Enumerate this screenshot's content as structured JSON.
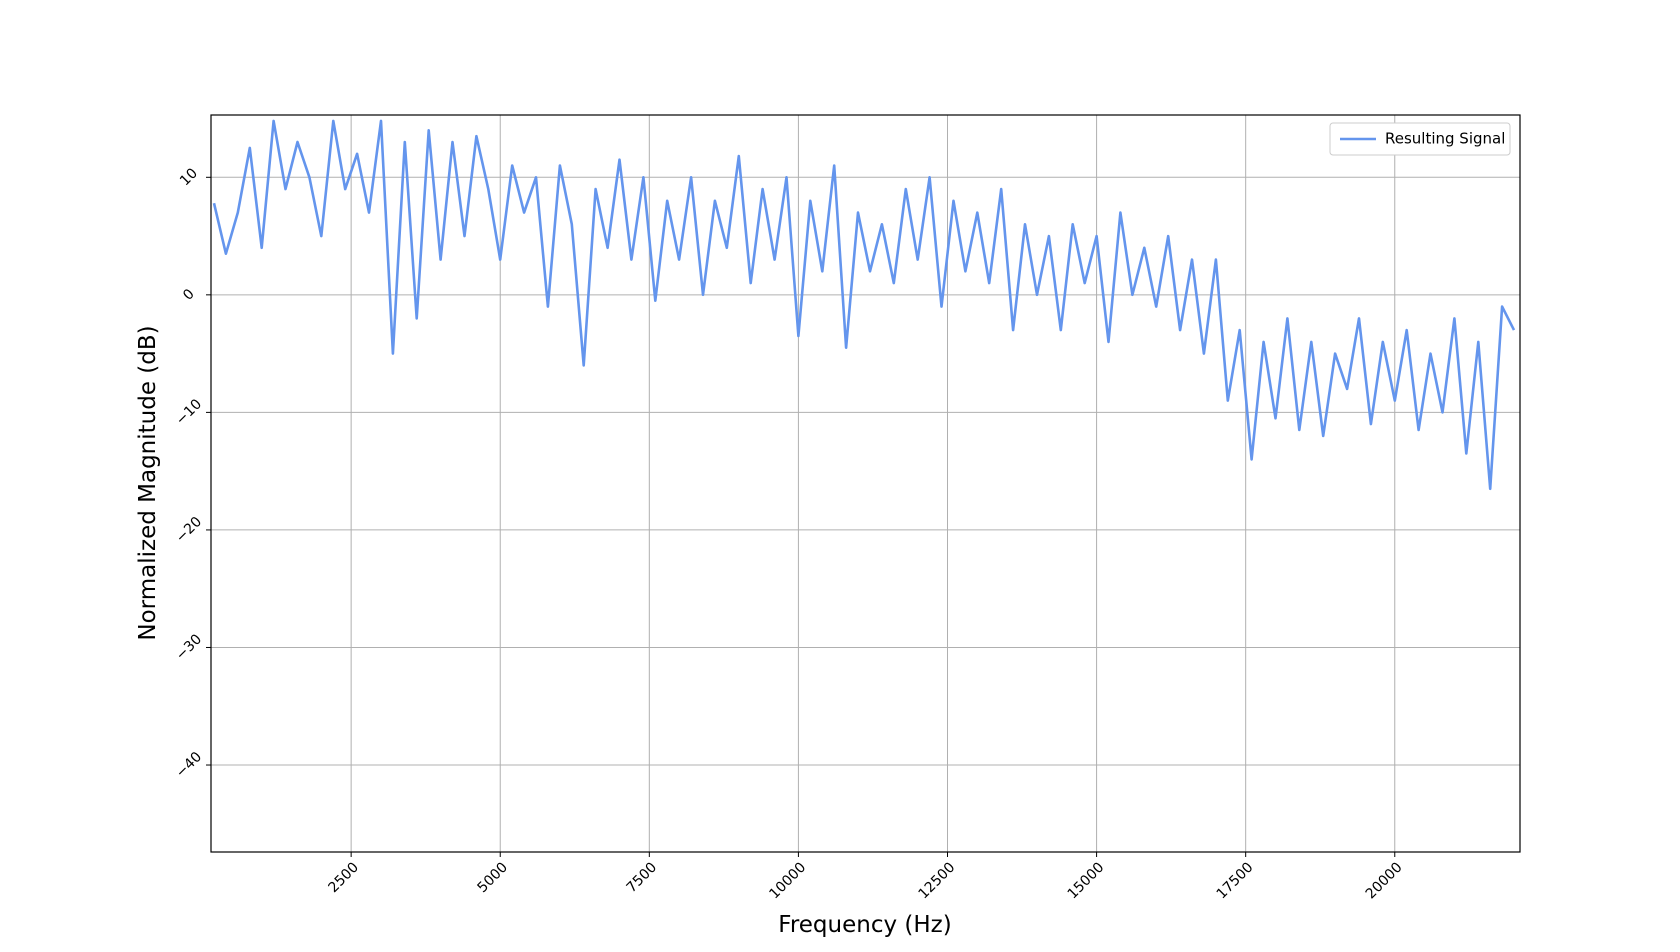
{
  "chart_data": {
    "type": "line",
    "xlabel": "Frequency (Hz)",
    "ylabel": "Normalized Magnitude (dB)",
    "x": [
      200,
      400,
      600,
      800,
      1000,
      1200,
      1400,
      1600,
      1800,
      2000,
      2200,
      2400,
      2600,
      2800,
      3000,
      3200,
      3400,
      3600,
      3800,
      4000,
      4200,
      4400,
      4600,
      4800,
      5000,
      5200,
      5400,
      5600,
      5800,
      6000,
      6200,
      6400,
      6600,
      6800,
      7000,
      7200,
      7400,
      7600,
      7800,
      8000,
      8200,
      8400,
      8600,
      8800,
      9000,
      9200,
      9400,
      9600,
      9800,
      10000,
      10200,
      10400,
      10600,
      10800,
      11000,
      11200,
      11400,
      11600,
      11800,
      12000,
      12200,
      12400,
      12600,
      12800,
      13000,
      13200,
      13400,
      13600,
      13800,
      14000,
      14200,
      14400,
      14600,
      14800,
      15000,
      15200,
      15400,
      15600,
      15800,
      16000,
      16200,
      16400,
      16600,
      16800,
      17000,
      17200,
      17400,
      17600,
      17800,
      18000,
      18200,
      18400,
      18600,
      18800,
      19000,
      19200,
      19400,
      19600,
      19800,
      20000,
      20200,
      20400,
      20600,
      20800,
      21000,
      21200,
      21400,
      21600,
      21800,
      22000
    ],
    "series": [
      {
        "name": "Resulting Signal",
        "color": "#6495ed",
        "values": [
          7.8,
          3.5,
          7,
          12.5,
          4,
          14.8,
          9,
          13,
          10,
          5,
          14.8,
          9,
          12,
          7,
          14.8,
          -5,
          13,
          -2,
          14,
          3,
          13,
          5,
          13.5,
          9,
          3,
          11,
          7,
          10,
          -1,
          11,
          6,
          -6,
          9,
          4,
          11.5,
          3,
          10,
          -0.5,
          8,
          3,
          10,
          0,
          8,
          4,
          11.8,
          1,
          9,
          3,
          10,
          -3.5,
          8,
          2,
          11,
          -4.5,
          7,
          2,
          6,
          1,
          9,
          3,
          10,
          -1,
          8,
          2,
          7,
          1,
          9,
          -3,
          6,
          0,
          5,
          -3,
          6,
          1,
          5,
          -4,
          7,
          0,
          4,
          -1,
          5,
          -3,
          3,
          -5,
          3,
          -9,
          -3,
          -14,
          -4,
          -10.5,
          -2,
          -11.5,
          -4,
          -12,
          -5,
          -8,
          -2,
          -11,
          -4,
          -9,
          -3,
          -11.5,
          -5,
          -10,
          -2,
          -13.5,
          -4,
          -16.5,
          -1,
          -3
        ]
      }
    ],
    "xlim": [
      150,
      22100
    ],
    "ylim": [
      -47.4,
      15.3
    ],
    "xticks": [
      2500,
      5000,
      7500,
      10000,
      12500,
      15000,
      17500,
      20000
    ],
    "yticks": [
      {
        "value": -40,
        "label": "−40"
      },
      {
        "value": -30,
        "label": "−30"
      },
      {
        "value": -20,
        "label": "−20"
      },
      {
        "value": -10,
        "label": "−10"
      },
      0,
      10
    ],
    "grid": true,
    "legend": "upper right"
  }
}
